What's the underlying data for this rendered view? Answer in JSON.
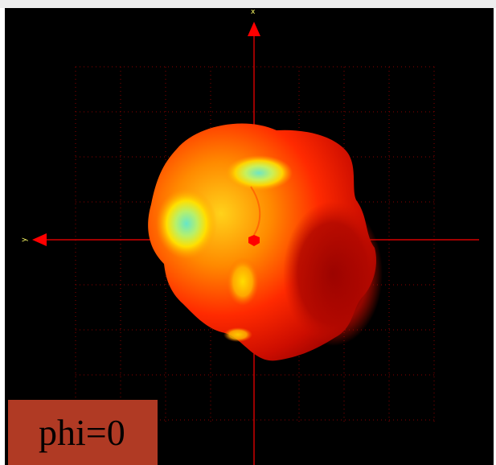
{
  "app": {
    "background": "#000000",
    "grid_color": "#8b0000"
  },
  "axes": {
    "vertical_axis_label": "x",
    "horizontal_axis_label": "y",
    "axis_color": "#ff0000",
    "label_color": "#ffff66"
  },
  "pattern": {
    "colors": [
      "#8b0000",
      "#ff1a00",
      "#ff7a00",
      "#ffcc00",
      "#66e0c8"
    ],
    "origin_marker_color": "#ff0000"
  },
  "label": {
    "text": "phi=0",
    "background": "#b03a24"
  }
}
